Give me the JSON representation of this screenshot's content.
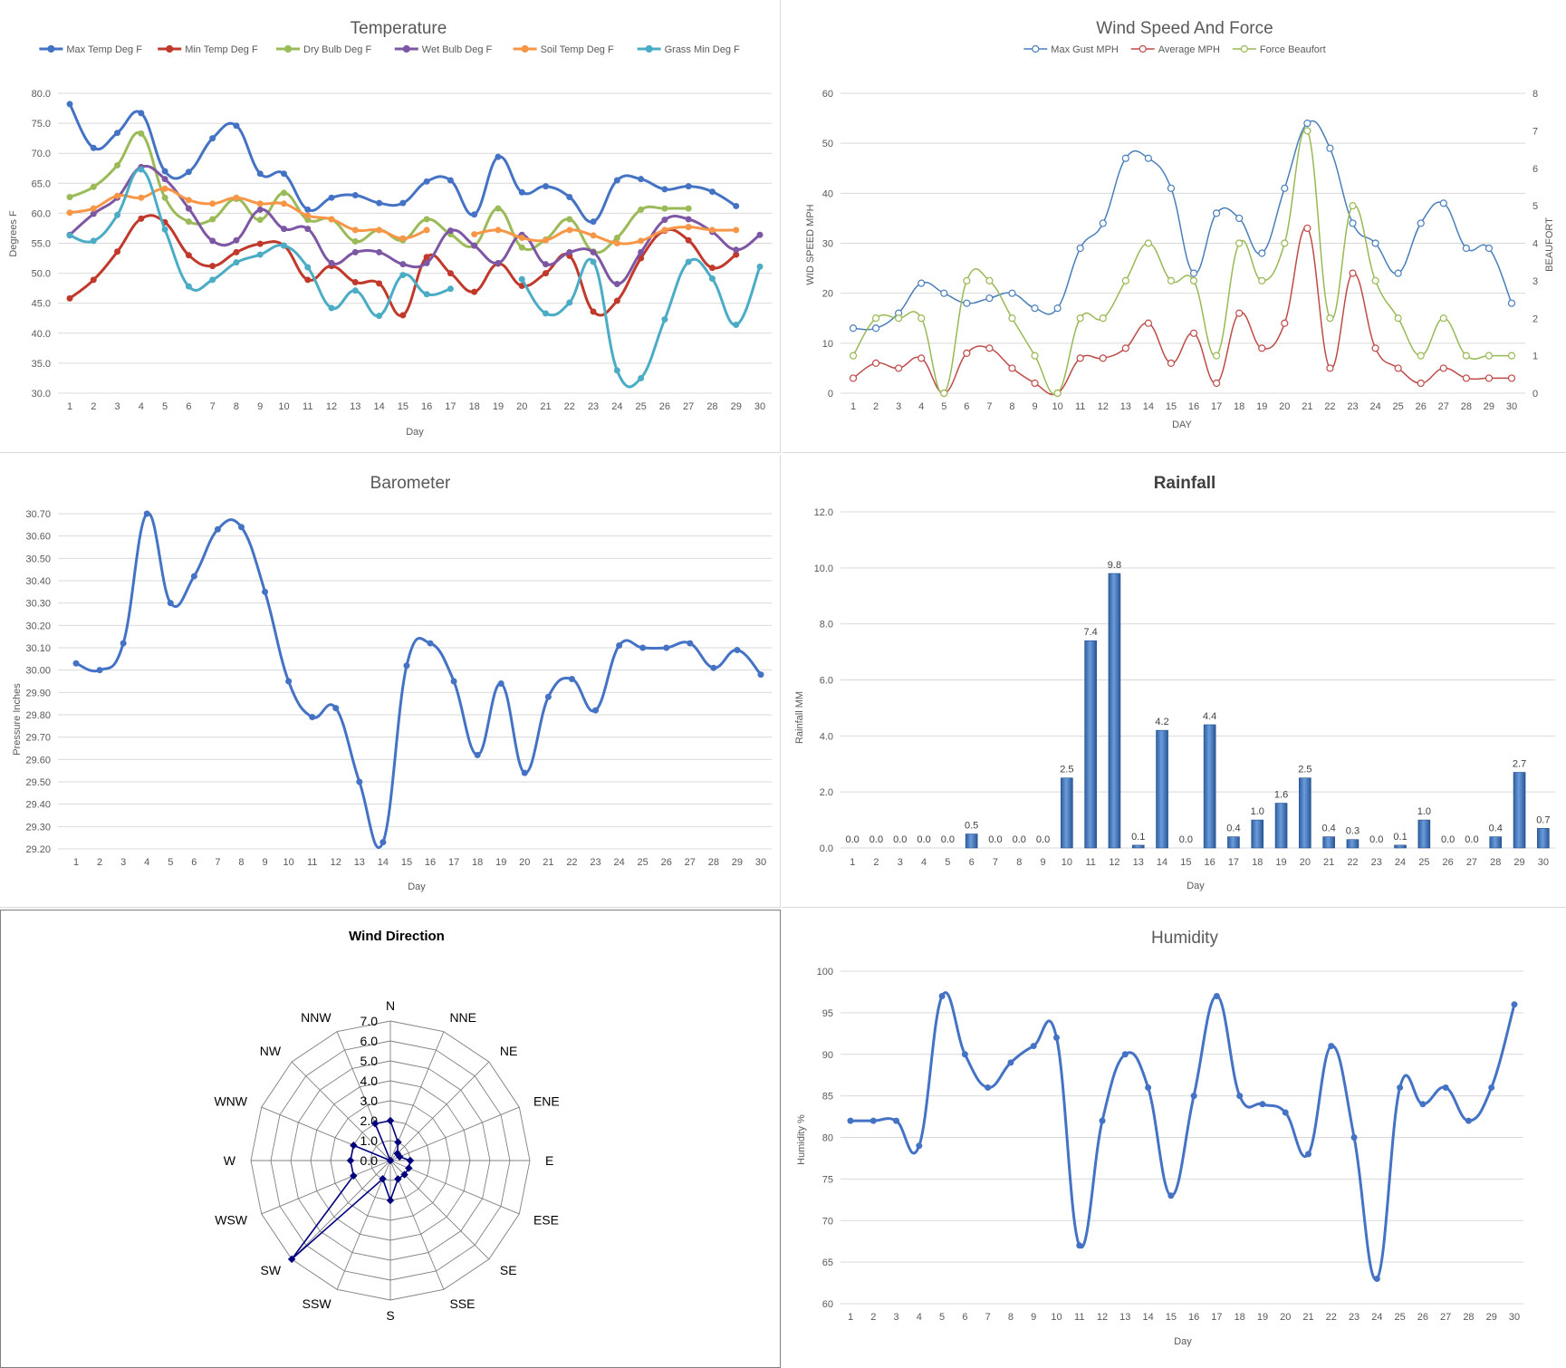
{
  "chart_data": [
    {
      "id": "temperature",
      "type": "line",
      "title": "Temperature",
      "xlabel": "Day",
      "ylabel": "Degrees F",
      "x": [
        1,
        2,
        3,
        4,
        5,
        6,
        7,
        8,
        9,
        10,
        11,
        12,
        13,
        14,
        15,
        16,
        17,
        18,
        19,
        20,
        21,
        22,
        23,
        24,
        25,
        26,
        27,
        28,
        29,
        30
      ],
      "ylim": [
        30.0,
        80.0
      ],
      "yticks": [
        "80.0",
        "75.0",
        "70.0",
        "65.0",
        "60.0",
        "55.0",
        "50.0",
        "45.0",
        "40.0",
        "35.0",
        "30.0"
      ],
      "grid": true,
      "legend": "top",
      "series": [
        {
          "name": "Max Temp Deg F",
          "color": "#4472C4",
          "values": [
            78.2,
            70.9,
            73.4,
            76.7,
            67.0,
            66.9,
            72.5,
            74.6,
            66.6,
            66.6,
            60.6,
            62.6,
            63.0,
            61.7,
            61.7,
            65.3,
            65.5,
            59.8,
            69.4,
            63.5,
            64.5,
            62.7,
            58.6,
            65.5,
            65.7,
            64.0,
            64.5,
            63.6,
            61.2,
            null
          ]
        },
        {
          "name": "Min Temp Deg F",
          "color": "#C0392B",
          "values": [
            45.8,
            48.9,
            53.6,
            59.1,
            58.5,
            53.0,
            51.2,
            53.5,
            54.9,
            54.6,
            48.9,
            51.2,
            48.5,
            48.3,
            43.0,
            52.7,
            50.0,
            46.9,
            51.6,
            47.9,
            50.0,
            52.9,
            43.6,
            45.4,
            52.5,
            57.1,
            55.5,
            50.9,
            53.1,
            null
          ]
        },
        {
          "name": "Dry Bulb Deg F",
          "color": "#9BBB59",
          "values": [
            62.7,
            64.4,
            68.0,
            73.3,
            62.6,
            58.6,
            59.0,
            62.4,
            58.9,
            63.4,
            58.9,
            59.0,
            55.3,
            57.2,
            55.5,
            59.0,
            56.5,
            54.6,
            60.8,
            54.3,
            55.6,
            59.0,
            53.6,
            55.9,
            60.6,
            60.8,
            60.8,
            null,
            null,
            null
          ]
        },
        {
          "name": "Wet Bulb Deg F",
          "color": "#7E57A4",
          "values": [
            56.4,
            59.9,
            62.6,
            67.7,
            65.7,
            60.8,
            55.4,
            55.5,
            60.6,
            57.4,
            57.4,
            51.7,
            53.5,
            53.5,
            51.5,
            51.7,
            57.1,
            54.6,
            51.7,
            56.4,
            51.5,
            53.5,
            53.5,
            48.2,
            53.5,
            58.9,
            59.0,
            56.9,
            53.9,
            56.4
          ]
        },
        {
          "name": "Soil Temp Deg F",
          "color": "#F79646",
          "values": [
            60.1,
            60.8,
            62.9,
            62.6,
            64.1,
            62.2,
            61.6,
            62.6,
            61.6,
            61.6,
            59.6,
            59.0,
            57.2,
            57.2,
            55.8,
            57.2,
            null,
            56.5,
            57.2,
            55.9,
            55.5,
            57.2,
            56.3,
            55.0,
            55.4,
            57.2,
            57.7,
            57.2,
            57.2,
            null
          ]
        },
        {
          "name": "Grass Min Deg F",
          "color": "#4BACC6",
          "values": [
            56.3,
            55.4,
            59.7,
            67.3,
            57.3,
            47.8,
            48.9,
            51.8,
            53.1,
            54.6,
            51.0,
            44.2,
            47.1,
            42.9,
            49.7,
            46.5,
            47.4,
            null,
            null,
            49.0,
            43.3,
            45.1,
            51.9,
            33.8,
            32.5,
            42.3,
            51.9,
            49.1,
            41.4,
            51.1
          ]
        }
      ]
    },
    {
      "id": "wind",
      "type": "line",
      "title": "Wind Speed And Force",
      "xlabel": "DAY",
      "ylabel": "WID SPEED MPH",
      "y2label": "BEAUFORT",
      "x": [
        1,
        2,
        3,
        4,
        5,
        6,
        7,
        8,
        9,
        10,
        11,
        12,
        13,
        14,
        15,
        16,
        17,
        18,
        19,
        20,
        21,
        22,
        23,
        24,
        25,
        26,
        27,
        28,
        29,
        30
      ],
      "ylim": [
        0,
        60
      ],
      "y2lim": [
        0,
        8
      ],
      "yticks": [
        "60",
        "50",
        "40",
        "30",
        "20",
        "10",
        "0"
      ],
      "y2ticks": [
        "8",
        "7",
        "6",
        "5",
        "4",
        "3",
        "2",
        "1",
        "0"
      ],
      "grid": true,
      "legend": "top",
      "series": [
        {
          "name": "Max Gust MPH",
          "color": "#4A7EBB",
          "axis": "left",
          "values": [
            13,
            13,
            16,
            22,
            20,
            18,
            19,
            20,
            17,
            17,
            29,
            34,
            47,
            47,
            41,
            24,
            36,
            35,
            28,
            41,
            54,
            49,
            34,
            30,
            24,
            34,
            38,
            29,
            29,
            18
          ]
        },
        {
          "name": "Average MPH",
          "color": "#BE4B48",
          "axis": "left",
          "values": [
            3,
            6,
            5,
            7,
            0,
            8,
            9,
            5,
            2,
            0,
            7,
            7,
            9,
            14,
            6,
            12,
            2,
            16,
            9,
            14,
            33,
            5,
            24,
            9,
            5,
            2,
            5,
            3,
            3,
            3
          ]
        },
        {
          "name": "Force Beaufort",
          "color": "#98B954",
          "axis": "right",
          "values": [
            1,
            2,
            2,
            2,
            0,
            3,
            3,
            2,
            1,
            0,
            2,
            2,
            3,
            4,
            3,
            3,
            1,
            4,
            3,
            4,
            7,
            2,
            5,
            3,
            2,
            1,
            2,
            1,
            1,
            1
          ]
        }
      ]
    },
    {
      "id": "barometer",
      "type": "line",
      "title": "Barometer",
      "xlabel": "Day",
      "ylabel": "Pressure Inches",
      "x": [
        1,
        2,
        3,
        4,
        5,
        6,
        7,
        8,
        9,
        10,
        11,
        12,
        13,
        14,
        15,
        16,
        17,
        18,
        19,
        20,
        21,
        22,
        23,
        24,
        25,
        26,
        27,
        28,
        29,
        30
      ],
      "ylim": [
        29.2,
        30.7
      ],
      "yticks": [
        "30.70",
        "30.60",
        "30.50",
        "30.40",
        "30.30",
        "30.20",
        "30.10",
        "30.00",
        "29.90",
        "29.80",
        "29.70",
        "29.60",
        "29.50",
        "29.40",
        "29.30",
        "29.20"
      ],
      "grid": true,
      "series": [
        {
          "name": "Barometer",
          "color": "#4472C4",
          "values": [
            30.03,
            30.0,
            30.12,
            30.7,
            30.3,
            30.42,
            30.63,
            30.64,
            30.35,
            29.95,
            29.79,
            29.83,
            29.5,
            29.23,
            30.02,
            30.12,
            29.95,
            29.62,
            29.94,
            29.54,
            29.88,
            29.96,
            29.82,
            30.11,
            30.1,
            30.1,
            30.12,
            30.01,
            30.09,
            29.98
          ]
        }
      ]
    },
    {
      "id": "rainfall",
      "type": "bar",
      "title": "Rainfall",
      "xlabel": "Day",
      "ylabel": "Rainfall MM",
      "categories": [
        "1",
        "2",
        "3",
        "4",
        "5",
        "6",
        "7",
        "8",
        "9",
        "10",
        "11",
        "12",
        "13",
        "14",
        "15",
        "16",
        "17",
        "18",
        "19",
        "20",
        "21",
        "22",
        "23",
        "24",
        "25",
        "26",
        "27",
        "28",
        "29",
        "30"
      ],
      "values": [
        0.0,
        0.0,
        0.0,
        0.0,
        0.0,
        0.5,
        0.0,
        0.0,
        0.0,
        2.5,
        7.4,
        9.8,
        0.1,
        4.2,
        0.0,
        4.4,
        0.4,
        1.0,
        1.6,
        2.5,
        0.4,
        0.3,
        0.0,
        0.1,
        1.0,
        0.0,
        0.0,
        0.4,
        2.7,
        0.7
      ],
      "data_labels": [
        "0.0",
        "0.0",
        "0.0",
        "0.0",
        "0.0",
        "0.5",
        "0.0",
        "0.0",
        "0.0",
        "2.5",
        "7.4",
        "9.8",
        "0.1",
        "4.2",
        "0.0",
        "4.4",
        "0.4",
        "1.0",
        "1.6",
        "2.5",
        "0.4",
        "0.3",
        "0.0",
        "0.1",
        "1.0",
        "0.0",
        "0.0",
        "0.4",
        "2.7",
        "0.7"
      ],
      "ylim": [
        0,
        12
      ],
      "yticks": [
        "12.0",
        "10.0",
        "8.0",
        "6.0",
        "4.0",
        "2.0",
        "0.0"
      ],
      "grid": true,
      "color": "#3A75C4"
    },
    {
      "id": "wind_direction",
      "type": "radar",
      "title": "Wind Direction",
      "categories": [
        "N",
        "NNE",
        "NE",
        "ENE",
        "E",
        "ESE",
        "SE",
        "SSE",
        "S",
        "SSW",
        "SW",
        "WSW",
        "W",
        "WNW",
        "NW",
        "NNW"
      ],
      "values": [
        2,
        1,
        0.5,
        0.5,
        1,
        1,
        1,
        1,
        2,
        1,
        7,
        2,
        2,
        2,
        0,
        2
      ],
      "rlim": [
        0,
        7
      ],
      "rticks": [
        "0.0",
        "1.0",
        "2.0",
        "3.0",
        "4.0",
        "5.0",
        "6.0",
        "7.0"
      ],
      "color": "#00007F"
    },
    {
      "id": "humidity",
      "type": "line",
      "title": "Humidity",
      "xlabel": "Day",
      "ylabel": "Humidity %",
      "x": [
        1,
        2,
        3,
        4,
        5,
        6,
        7,
        8,
        9,
        10,
        11,
        12,
        13,
        14,
        15,
        16,
        17,
        18,
        19,
        20,
        21,
        22,
        23,
        24,
        25,
        26,
        27,
        28,
        29,
        30
      ],
      "ylim": [
        60,
        100
      ],
      "yticks": [
        "100",
        "95",
        "90",
        "85",
        "80",
        "75",
        "70",
        "65",
        "60"
      ],
      "grid": true,
      "series": [
        {
          "name": "Humidity",
          "color": "#4472C4",
          "values": [
            82,
            82,
            82,
            79,
            97,
            90,
            86,
            89,
            91,
            92,
            67,
            82,
            90,
            86,
            73,
            85,
            97,
            85,
            84,
            83,
            78,
            91,
            80,
            63,
            86,
            84,
            86,
            82,
            86,
            96
          ]
        }
      ]
    }
  ]
}
